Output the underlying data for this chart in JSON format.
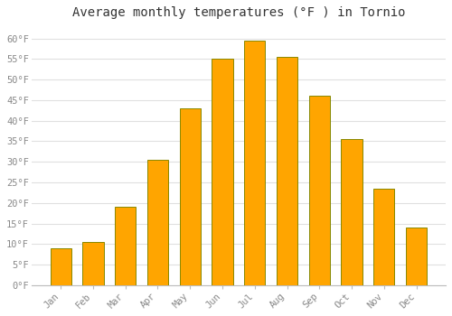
{
  "title": "Average monthly temperatures (°F ) in Tornio",
  "months": [
    "Jan",
    "Feb",
    "Mar",
    "Apr",
    "May",
    "Jun",
    "Jul",
    "Aug",
    "Sep",
    "Oct",
    "Nov",
    "Dec"
  ],
  "values": [
    9,
    10.5,
    19,
    30.5,
    43,
    55,
    59.5,
    55.5,
    46,
    35.5,
    23.5,
    14
  ],
  "bar_color": "#FFA500",
  "bar_edge_color": "#888800",
  "background_color": "#ffffff",
  "grid_color": "#e0e0e0",
  "ylim": [
    0,
    63
  ],
  "yticks": [
    0,
    5,
    10,
    15,
    20,
    25,
    30,
    35,
    40,
    45,
    50,
    55,
    60
  ],
  "tick_label_color": "#888888",
  "title_color": "#333333",
  "title_fontsize": 10,
  "bar_width": 0.65
}
